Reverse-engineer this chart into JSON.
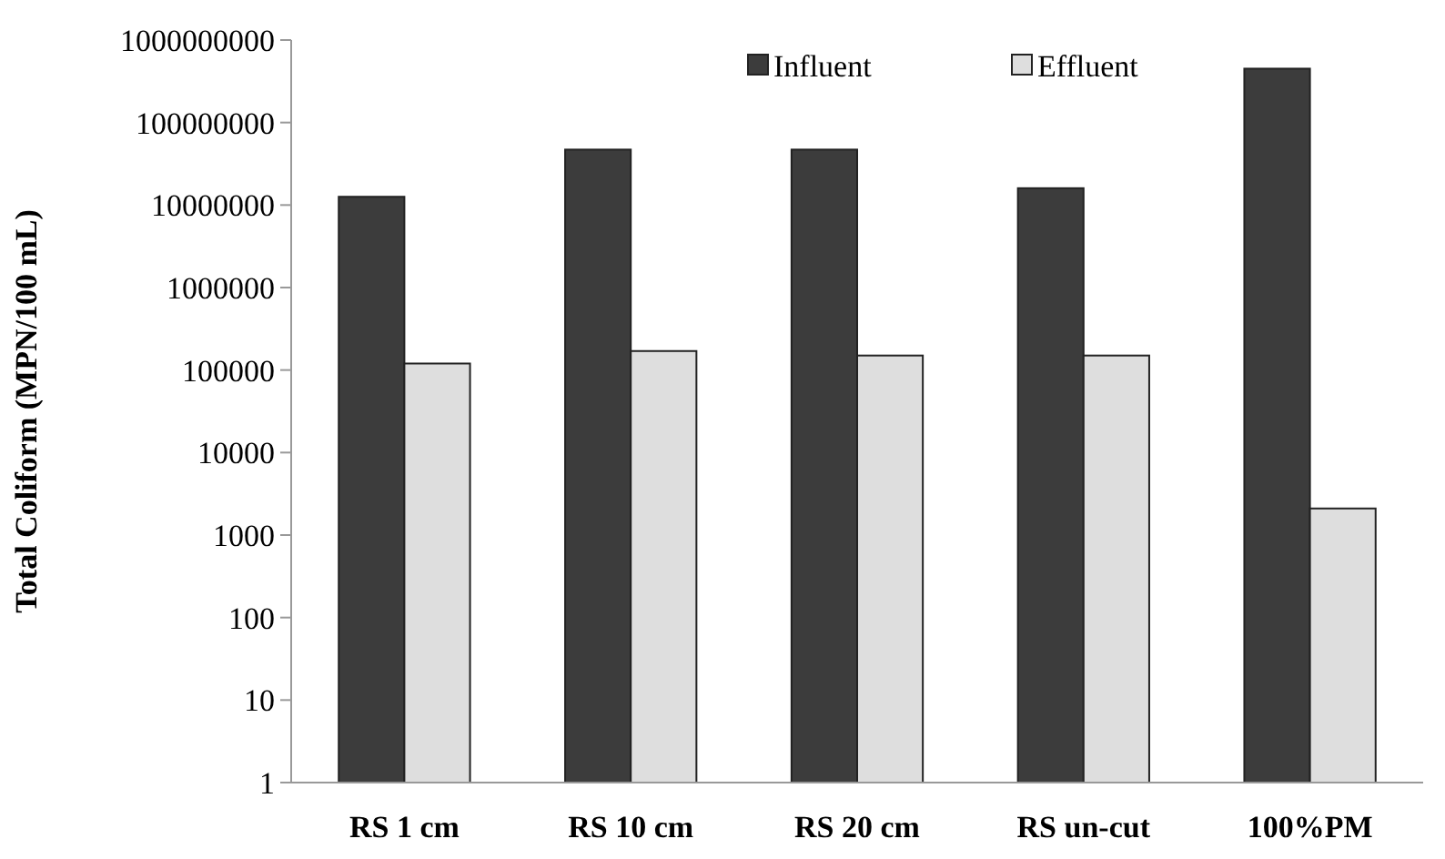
{
  "chart_data": {
    "type": "bar",
    "ylabel": "Total Coliform (MPN/100  mL)",
    "categories": [
      "RS 1 cm",
      "RS 10 cm",
      "RS 20 cm",
      "RS un-cut",
      "100%PM"
    ],
    "series": [
      {
        "name": "Influent",
        "color": "#3c3c3c",
        "values": [
          12600000,
          47000000,
          47000000,
          16000000,
          450000000
        ]
      },
      {
        "name": "Effluent",
        "color": "#dedede",
        "values": [
          120000,
          170000,
          150000,
          150000,
          2100
        ]
      }
    ],
    "log": true,
    "ylim": [
      1,
      1000000000
    ],
    "yticks": [
      1,
      10,
      100,
      1000,
      10000,
      100000,
      1000000,
      10000000,
      100000000,
      1000000000
    ],
    "grid": false,
    "legend": "top"
  }
}
